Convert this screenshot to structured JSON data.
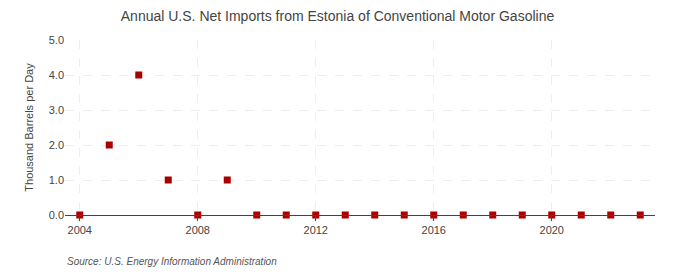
{
  "chart_data": {
    "type": "scatter",
    "title": "Annual U.S. Net Imports from Estonia of Conventional Motor Gasoline",
    "ylabel": "Thousand Barrels per Day",
    "annotations": [
      "Source: U.S. Energy Information Administration"
    ],
    "x": [
      2004,
      2005,
      2006,
      2007,
      2008,
      2009,
      2010,
      2011,
      2012,
      2013,
      2014,
      2015,
      2016,
      2017,
      2018,
      2019,
      2020,
      2021,
      2022,
      2023
    ],
    "values": [
      0.0,
      2.0,
      4.0,
      1.0,
      0.0,
      1.0,
      0.0,
      0.0,
      0.0,
      0.0,
      0.0,
      0.0,
      0.0,
      0.0,
      0.0,
      0.0,
      0.0,
      0.0,
      0.0,
      0.0
    ],
    "color": "#aa0000",
    "marker": "square",
    "xlim": [
      2003.5,
      2023.5
    ],
    "ylim": [
      0.0,
      5.0
    ],
    "xticks": [
      2004,
      2008,
      2012,
      2016,
      2020
    ],
    "yticks": [
      {
        "value": 0.0,
        "label": "0.0"
      },
      {
        "value": 1.0,
        "label": "1.0"
      },
      {
        "value": 2.0,
        "label": "2.0"
      },
      {
        "value": 3.0,
        "label": "3.0"
      },
      {
        "value": 4.0,
        "label": "4.0"
      },
      {
        "value": 5.0,
        "label": "5.0"
      }
    ],
    "grid": true
  }
}
